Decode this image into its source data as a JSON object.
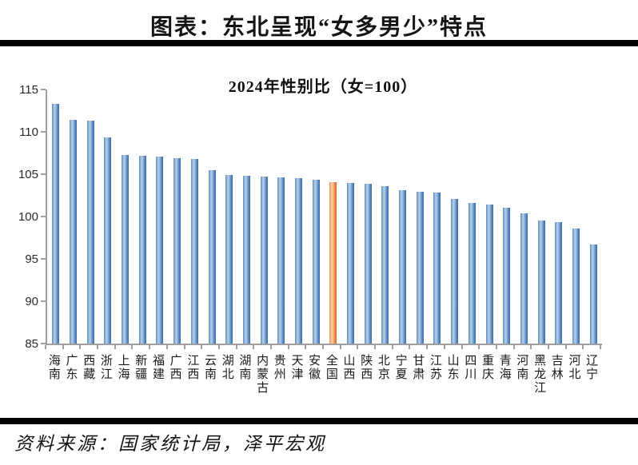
{
  "header": {
    "title": "图表：东北呈现“女多男少”特点"
  },
  "footer": {
    "source": "资料来源：国家统计局，泽平宏观"
  },
  "chart_data": {
    "type": "bar",
    "title": "2024年性别比（女=100）",
    "categories": [
      "海南",
      "广东",
      "西藏",
      "浙江",
      "上海",
      "新疆",
      "福建",
      "广西",
      "江西",
      "云南",
      "湖北",
      "湖南",
      "内蒙古",
      "贵州",
      "天津",
      "安徽",
      "全国",
      "山西",
      "陕西",
      "北京",
      "宁夏",
      "甘肃",
      "江苏",
      "山东",
      "四川",
      "重庆",
      "青海",
      "河南",
      "黑龙江",
      "吉林",
      "河北",
      "辽宁"
    ],
    "values": [
      113.3,
      111.4,
      111.3,
      109.3,
      107.3,
      107.2,
      107.1,
      106.9,
      106.8,
      105.5,
      104.9,
      104.8,
      104.7,
      104.6,
      104.5,
      104.3,
      104.1,
      104.0,
      103.9,
      103.6,
      103.1,
      102.9,
      102.8,
      102.1,
      101.6,
      101.4,
      101.0,
      100.4,
      99.5,
      99.3,
      98.6,
      96.7
    ],
    "highlight_category": "全国",
    "highlight_index": 16,
    "xlabel": "",
    "ylabel": "",
    "ylim": [
      85,
      115
    ],
    "yticks": [
      85,
      90,
      95,
      100,
      105,
      110,
      115
    ],
    "grid": false,
    "legend": "none",
    "colors": {
      "bar": "#4f81bd",
      "bar_highlight": "#ed7d31",
      "axis": "#9e9e9e",
      "text": "#141414"
    }
  }
}
